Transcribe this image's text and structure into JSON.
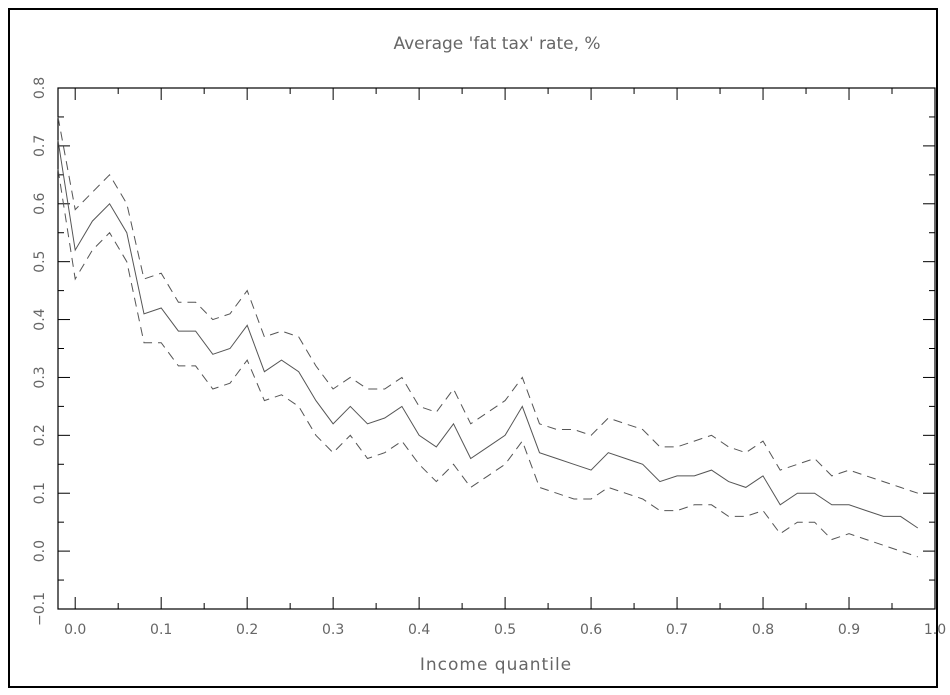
{
  "chart_data": {
    "type": "line",
    "title": "Average 'fat tax' rate, %",
    "xlabel": "Income quantile",
    "ylabel": "",
    "xlim": [
      -0.02,
      1.0
    ],
    "ylim": [
      -0.1,
      0.8
    ],
    "x_ticks": [
      0.0,
      0.1,
      0.2,
      0.3,
      0.4,
      0.5,
      0.6,
      0.7,
      0.8,
      0.9,
      1.0
    ],
    "x_tick_labels": [
      "0.0",
      "0.1",
      "0.2",
      "0.3",
      "0.4",
      "0.5",
      "0.6",
      "0.7",
      "0.8",
      "0.9",
      "1.0"
    ],
    "y_ticks": [
      -0.1,
      0.0,
      0.1,
      0.2,
      0.3,
      0.4,
      0.5,
      0.6,
      0.7,
      0.8
    ],
    "y_tick_labels": [
      "−0.1",
      "0.0",
      "0.1",
      "0.2",
      "0.3",
      "0.4",
      "0.5",
      "0.6",
      "0.7",
      "0.8"
    ],
    "grid": false,
    "x": [
      -0.02,
      0.0,
      0.02,
      0.04,
      0.06,
      0.08,
      0.1,
      0.12,
      0.14,
      0.16,
      0.18,
      0.2,
      0.22,
      0.24,
      0.26,
      0.28,
      0.3,
      0.32,
      0.34,
      0.36,
      0.38,
      0.4,
      0.42,
      0.44,
      0.46,
      0.48,
      0.5,
      0.52,
      0.54,
      0.56,
      0.58,
      0.6,
      0.62,
      0.64,
      0.66,
      0.68,
      0.7,
      0.72,
      0.74,
      0.76,
      0.78,
      0.8,
      0.82,
      0.84,
      0.86,
      0.88,
      0.9,
      0.92,
      0.94,
      0.96,
      0.98
    ],
    "series": [
      {
        "style": "solid",
        "values": [
          0.71,
          0.52,
          0.57,
          0.6,
          0.55,
          0.41,
          0.42,
          0.38,
          0.38,
          0.34,
          0.35,
          0.39,
          0.31,
          0.33,
          0.31,
          0.26,
          0.22,
          0.25,
          0.22,
          0.23,
          0.25,
          0.2,
          0.18,
          0.22,
          0.16,
          0.18,
          0.2,
          0.25,
          0.17,
          0.16,
          0.15,
          0.14,
          0.17,
          0.16,
          0.15,
          0.12,
          0.13,
          0.13,
          0.14,
          0.12,
          0.11,
          0.13,
          0.08,
          0.1,
          0.1,
          0.08,
          0.08,
          0.07,
          0.06,
          0.06,
          0.04
        ]
      },
      {
        "style": "dashed",
        "values": [
          0.75,
          0.59,
          0.62,
          0.65,
          0.6,
          0.47,
          0.48,
          0.43,
          0.43,
          0.4,
          0.41,
          0.45,
          0.37,
          0.38,
          0.37,
          0.32,
          0.28,
          0.3,
          0.28,
          0.28,
          0.3,
          0.25,
          0.24,
          0.28,
          0.22,
          0.24,
          0.26,
          0.3,
          0.22,
          0.21,
          0.21,
          0.2,
          0.23,
          0.22,
          0.21,
          0.18,
          0.18,
          0.19,
          0.2,
          0.18,
          0.17,
          0.19,
          0.14,
          0.15,
          0.16,
          0.13,
          0.14,
          0.13,
          0.12,
          0.11,
          0.1
        ]
      },
      {
        "style": "dashed",
        "values": [
          0.66,
          0.47,
          0.52,
          0.55,
          0.5,
          0.36,
          0.36,
          0.32,
          0.32,
          0.28,
          0.29,
          0.33,
          0.26,
          0.27,
          0.25,
          0.2,
          0.17,
          0.2,
          0.16,
          0.17,
          0.19,
          0.15,
          0.12,
          0.15,
          0.11,
          0.13,
          0.15,
          0.19,
          0.11,
          0.1,
          0.09,
          0.09,
          0.11,
          0.1,
          0.09,
          0.07,
          0.07,
          0.08,
          0.08,
          0.06,
          0.06,
          0.07,
          0.03,
          0.05,
          0.05,
          0.02,
          0.03,
          0.02,
          0.01,
          0.0,
          -0.01
        ]
      }
    ]
  }
}
